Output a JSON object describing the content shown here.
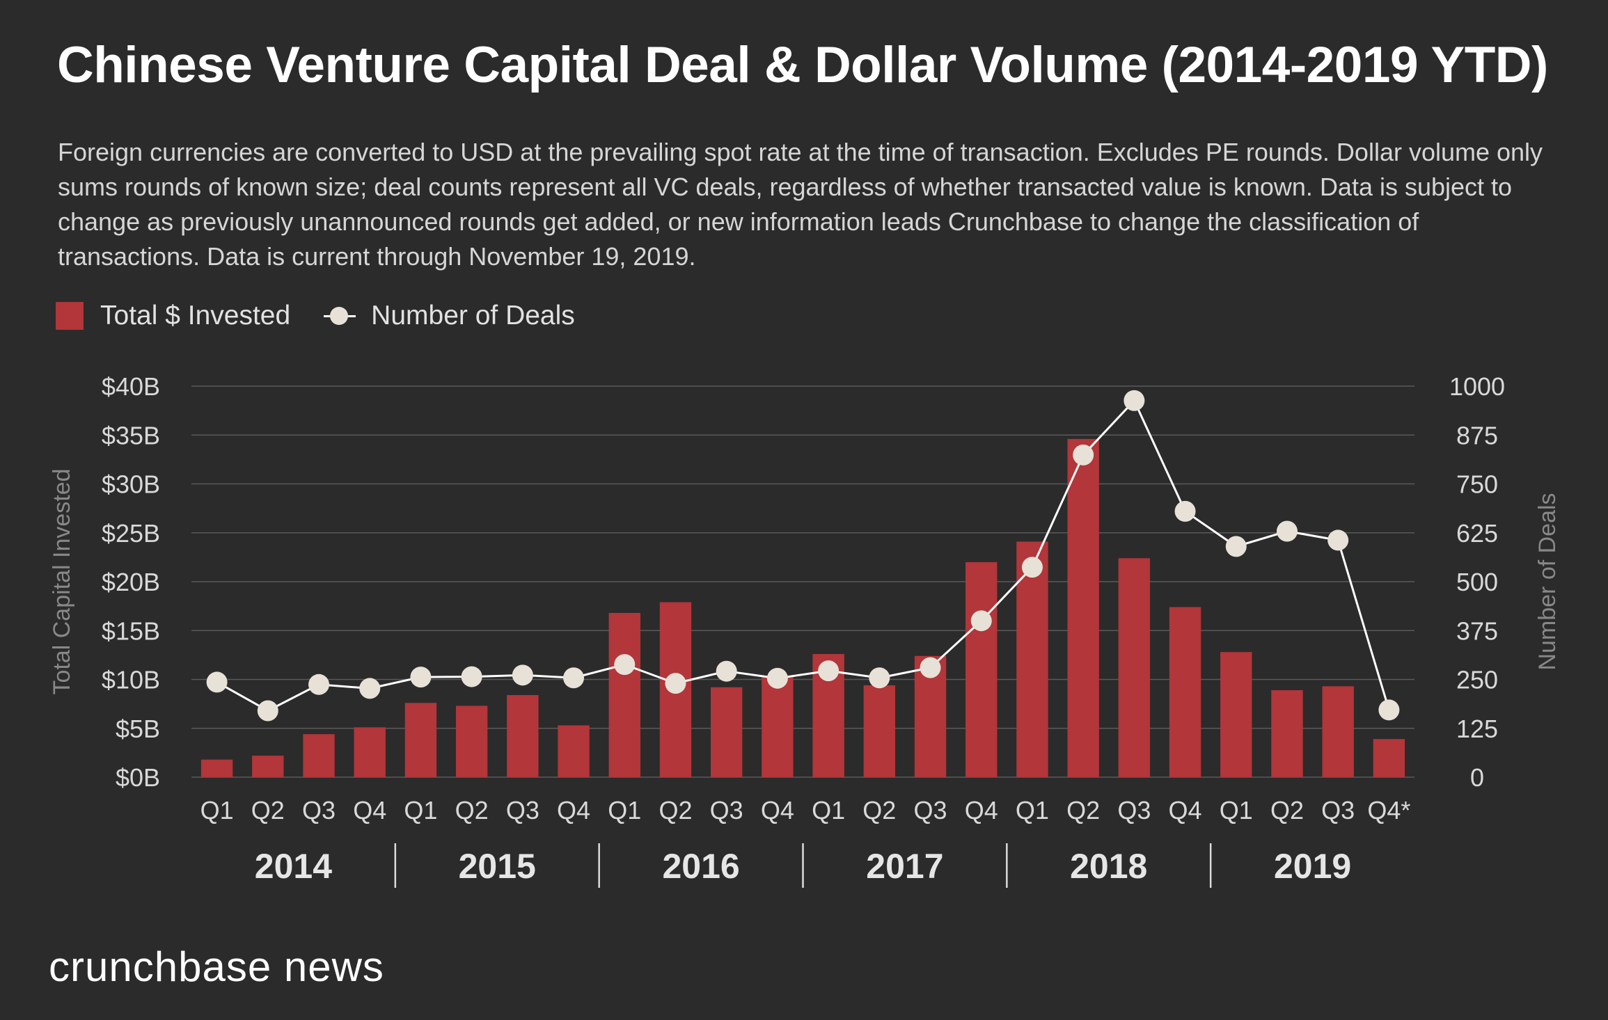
{
  "title": "Chinese Venture Capital Deal & Dollar Volume (2014-2019 YTD)",
  "subtitle": "Foreign currencies are converted to USD at the prevailing spot rate at the time of transaction. Excludes PE rounds. Dollar volume only sums rounds of known size; deal counts represent all VC deals, regardless of whether transacted value is known. Data is subject to change as previously unannounced rounds get added, or new information leads Crunchbase to change the classification of transactions. Data is current through November 19, 2019.",
  "legend": {
    "bars_label": "Total $ Invested",
    "line_label": "Number of Deals"
  },
  "brand": "crunchbase news",
  "colors": {
    "background": "#2b2b2b",
    "bar": "#b2363a",
    "line": "#ffffff",
    "marker": "#e7e1d7",
    "grid": "#5a5a5a",
    "tick_text": "#d9d9d9",
    "axis_title": "#888888"
  },
  "chart_data": {
    "type": "bar",
    "categories": [
      "Q1",
      "Q2",
      "Q3",
      "Q4",
      "Q1",
      "Q2",
      "Q3",
      "Q4",
      "Q1",
      "Q2",
      "Q3",
      "Q4",
      "Q1",
      "Q2",
      "Q3",
      "Q4",
      "Q1",
      "Q2",
      "Q3",
      "Q4",
      "Q1",
      "Q2",
      "Q3",
      "Q4*"
    ],
    "groups": [
      {
        "label": "2014",
        "count": 4
      },
      {
        "label": "2015",
        "count": 4
      },
      {
        "label": "2016",
        "count": 4
      },
      {
        "label": "2017",
        "count": 4
      },
      {
        "label": "2018",
        "count": 4
      },
      {
        "label": "2019",
        "count": 4
      }
    ],
    "series": [
      {
        "name": "Total $ Invested",
        "axis": "left",
        "kind": "bar",
        "values": [
          1.8,
          2.2,
          4.4,
          5.1,
          7.6,
          7.3,
          8.4,
          5.3,
          16.8,
          17.9,
          9.2,
          10.3,
          12.6,
          9.4,
          12.4,
          22.0,
          24.1,
          34.6,
          22.4,
          17.4,
          12.8,
          8.9,
          9.3,
          3.9
        ]
      },
      {
        "name": "Number of Deals",
        "axis": "right",
        "kind": "line",
        "values": [
          243,
          170,
          237,
          227,
          256,
          257,
          261,
          254,
          288,
          240,
          271,
          253,
          272,
          254,
          280,
          400,
          537,
          824,
          963,
          680,
          590,
          629,
          606,
          172
        ]
      }
    ],
    "ylabel": "Total Capital Invested",
    "y2label": "Number of Deals",
    "ylim": [
      0,
      40
    ],
    "y2lim": [
      0,
      1000
    ],
    "yticks": [
      "$0B",
      "$5B",
      "$10B",
      "$15B",
      "$20B",
      "$25B",
      "$30B",
      "$35B",
      "$40B"
    ],
    "y2ticks": [
      "0",
      "125",
      "250",
      "375",
      "500",
      "625",
      "750",
      "875",
      "1000"
    ],
    "grid": true,
    "legend_position": "top-left"
  }
}
